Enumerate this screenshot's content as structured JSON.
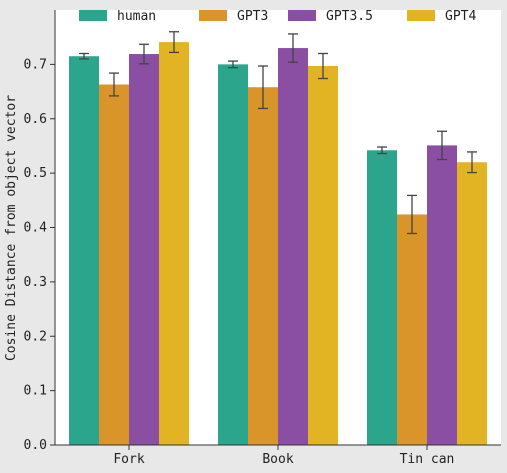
{
  "chart_data": {
    "type": "bar",
    "categories": [
      "Fork",
      "Book",
      "Tin can"
    ],
    "series": [
      {
        "name": "human",
        "color": "#2ca58d",
        "values": [
          0.715,
          0.7,
          0.542
        ],
        "err": [
          0.005,
          0.006,
          0.006
        ]
      },
      {
        "name": "GPT3",
        "color": "#d9952a",
        "values": [
          0.663,
          0.658,
          0.424
        ],
        "err": [
          0.021,
          0.039,
          0.035
        ]
      },
      {
        "name": "GPT3.5",
        "color": "#8a4ea3",
        "values": [
          0.719,
          0.73,
          0.551
        ],
        "err": [
          0.018,
          0.026,
          0.026
        ]
      },
      {
        "name": "GPT4",
        "color": "#e2b424",
        "values": [
          0.741,
          0.697,
          0.52
        ],
        "err": [
          0.019,
          0.023,
          0.019
        ]
      }
    ],
    "title": "",
    "xlabel": "",
    "ylabel": "Cosine Distance from object vector",
    "ylim": [
      0,
      0.8
    ],
    "yticks": [
      "0.0",
      "0.1",
      "0.2",
      "0.3",
      "0.4",
      "0.5",
      "0.6",
      "0.7"
    ],
    "legend": "top",
    "grid": false
  }
}
